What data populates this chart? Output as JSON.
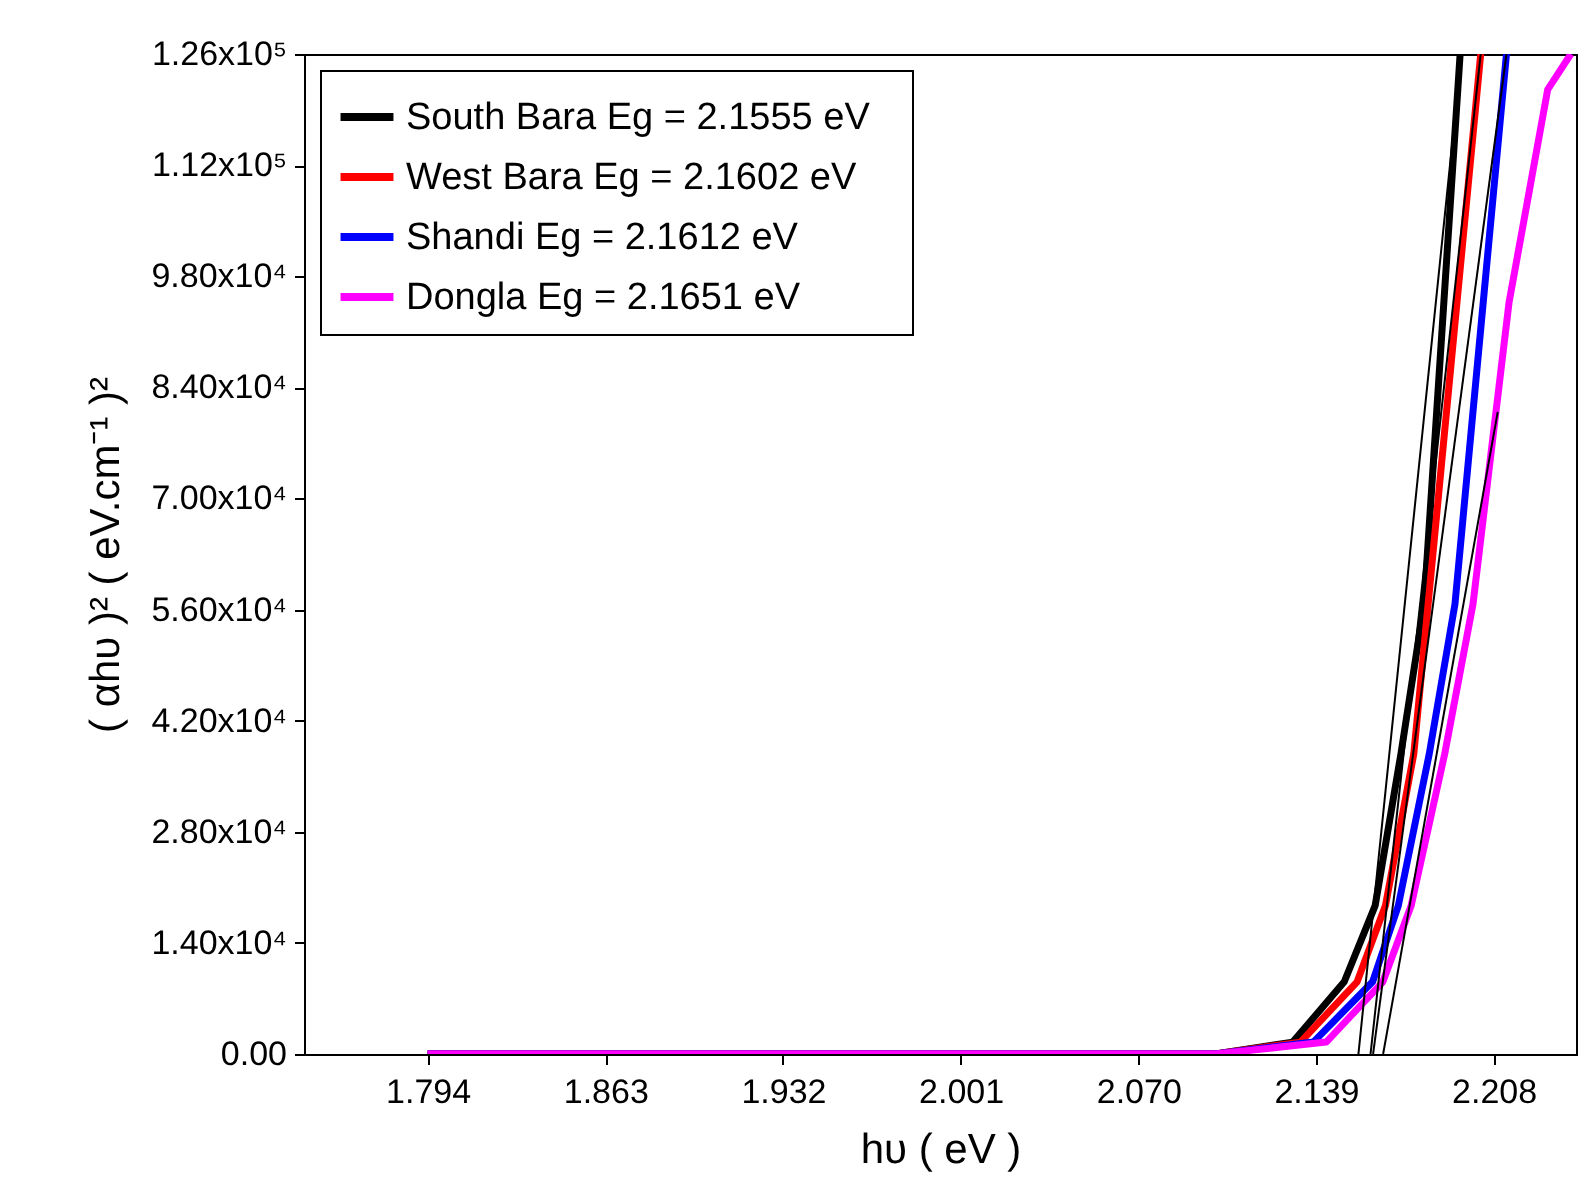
{
  "chart_data": {
    "type": "line",
    "xlabel": "hυ ( eV )",
    "ylabel": "( αhυ )² ( eV.cm⁻¹ )²",
    "xlim": [
      1.746,
      2.24
    ],
    "ylim": [
      0,
      126000
    ],
    "xticks": [
      1.794,
      1.863,
      1.932,
      2.001,
      {
        "value": 2.07,
        "label": "2.070"
      },
      2.139,
      2.208
    ],
    "yticks": [
      {
        "value": 0,
        "label": "0.00"
      },
      {
        "value": 14000,
        "label": "1.40x10⁴"
      },
      {
        "value": 28000,
        "label": "2.80x10⁴"
      },
      {
        "value": 42000,
        "label": "4.20x10⁴"
      },
      {
        "value": 56000,
        "label": "5.60x10⁴"
      },
      {
        "value": 70000,
        "label": "7.00x10⁴"
      },
      {
        "value": 84000,
        "label": "8.40x10⁴"
      },
      {
        "value": 98000,
        "label": "9.80x10⁴"
      },
      {
        "value": 112000,
        "label": "1.12x10⁵"
      },
      {
        "value": 126000,
        "label": "1.26x10⁵"
      }
    ],
    "legend": "top left",
    "series": [
      {
        "name": "South Bara  Eg = 2.1555 eV",
        "color": "#000000",
        "x": [
          1.794,
          2.1,
          2.13,
          2.15,
          2.162,
          2.172,
          2.181,
          2.195
        ],
        "values": [
          0,
          0,
          1500,
          9100,
          18700,
          37800,
          56700,
          126000
        ]
      },
      {
        "name": "West Bara   Eg = 2.1602 eV",
        "color": "#ff0000",
        "x": [
          1.794,
          2.1,
          2.133,
          2.155,
          2.166,
          2.177,
          2.203
        ],
        "values": [
          0,
          0,
          1500,
          9100,
          18700,
          37800,
          126000
        ]
      },
      {
        "name": "Shandi          Eg = 2.1612 eV",
        "color": "#0000ff",
        "x": [
          1.794,
          2.1,
          2.138,
          2.161,
          2.171,
          2.183,
          2.193,
          2.213
        ],
        "values": [
          0,
          0,
          1500,
          9100,
          18700,
          37800,
          56700,
          126000
        ]
      },
      {
        "name": "Dongla          Eg = 2.1651 eV",
        "color": "#ff00ff",
        "x": [
          1.794,
          2.1,
          2.143,
          2.165,
          2.176,
          2.189,
          2.2,
          2.214,
          2.229,
          2.238
        ],
        "values": [
          0,
          0,
          1500,
          9100,
          18700,
          37800,
          56700,
          94700,
          121500,
          126000
        ]
      },
      {
        "color": "#000000",
        "x": [
          2.1555,
          2.1955
        ],
        "values": [
          0,
          126000
        ]
      },
      {
        "color": "#000000",
        "x": [
          2.1602,
          2.203
        ],
        "values": [
          0,
          126000
        ]
      },
      {
        "color": "#000000",
        "x": [
          2.1612,
          2.213
        ],
        "values": [
          0,
          126000
        ]
      },
      {
        "color": "#000000",
        "x": [
          2.1651,
          2.2096
        ],
        "values": [
          0,
          80900
        ]
      }
    ]
  }
}
